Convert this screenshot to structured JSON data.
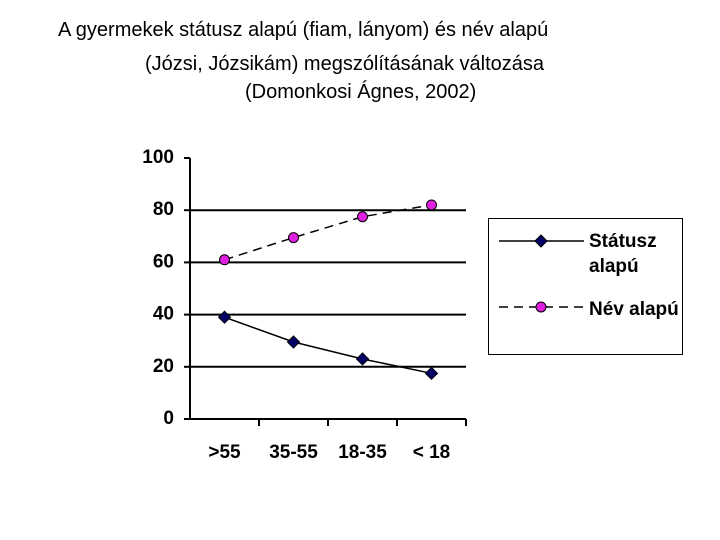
{
  "chart_data": {
    "type": "line",
    "title": [
      "A gyermekek státusz alapú (fiam, lányom) és név alapú",
      "(Józsi, Józsikám) megszólításának változása",
      "(Domonkosi Ágnes, 2002)"
    ],
    "categories": [
      ">55",
      "35-55",
      "18-35",
      "< 18"
    ],
    "series": [
      {
        "name": "Státusz alapú",
        "color": "#000066",
        "marker": "diamond",
        "dashed": false,
        "values": [
          39,
          29.5,
          23,
          17.5
        ]
      },
      {
        "name": "Név alapú",
        "color": "#e020e0",
        "marker": "circle",
        "dashed": true,
        "values": [
          61,
          69.5,
          77.5,
          82
        ]
      }
    ],
    "ylim": [
      0,
      100
    ],
    "yticks": [
      0,
      20,
      40,
      60,
      80,
      100
    ],
    "grid": true
  }
}
